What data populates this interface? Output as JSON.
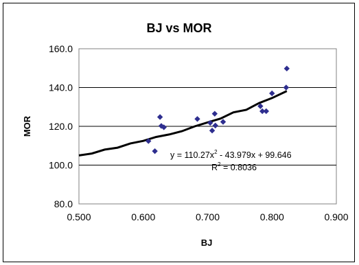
{
  "chart_data": {
    "type": "scatter",
    "title": "BJ vs MOR",
    "xlabel": "BJ",
    "ylabel": "MOR",
    "xlim": [
      0.5,
      0.9
    ],
    "ylim": [
      80,
      160
    ],
    "x_ticks": [
      "0.500",
      "0.600",
      "0.700",
      "0.800",
      "0.900"
    ],
    "y_ticks": [
      "80.0",
      "100.0",
      "120.0",
      "140.0",
      "160.0"
    ],
    "grid": "horizontal",
    "legend": "none",
    "series": [
      {
        "marker": "diamond",
        "color": "#2e2e8f",
        "points": [
          [
            0.608,
            112.4
          ],
          [
            0.618,
            107.2
          ],
          [
            0.626,
            124.8
          ],
          [
            0.628,
            120.2
          ],
          [
            0.632,
            119.5
          ],
          [
            0.684,
            123.8
          ],
          [
            0.704,
            121.8
          ],
          [
            0.707,
            117.8
          ],
          [
            0.711,
            126.5
          ],
          [
            0.712,
            120.4
          ],
          [
            0.724,
            122.3
          ],
          [
            0.782,
            130.4
          ],
          [
            0.785,
            127.8
          ],
          [
            0.791,
            127.8
          ],
          [
            0.8,
            137.0
          ],
          [
            0.822,
            140.0
          ],
          [
            0.823,
            149.8
          ]
        ]
      }
    ],
    "trendline": {
      "type": "polynomial",
      "color": "#000000",
      "x_range": [
        0.5,
        0.823
      ],
      "points": [
        [
          0.5,
          105.0
        ],
        [
          0.52,
          106.0
        ],
        [
          0.54,
          108.0
        ],
        [
          0.56,
          109.0
        ],
        [
          0.58,
          111.2
        ],
        [
          0.6,
          112.5
        ],
        [
          0.62,
          114.5
        ],
        [
          0.64,
          115.8
        ],
        [
          0.66,
          117.5
        ],
        [
          0.68,
          120.0
        ],
        [
          0.7,
          122.0
        ],
        [
          0.72,
          124.0
        ],
        [
          0.74,
          127.2
        ],
        [
          0.76,
          128.5
        ],
        [
          0.78,
          132.0
        ],
        [
          0.8,
          134.6
        ],
        [
          0.823,
          138.2
        ]
      ],
      "equation_main": "y = 110.27x",
      "equation_exp": "2",
      "equation_rest": " - 43.979x + 99.646",
      "r2_main": "R",
      "r2_exp": "2",
      "r2_rest": " = 0.8036"
    }
  }
}
